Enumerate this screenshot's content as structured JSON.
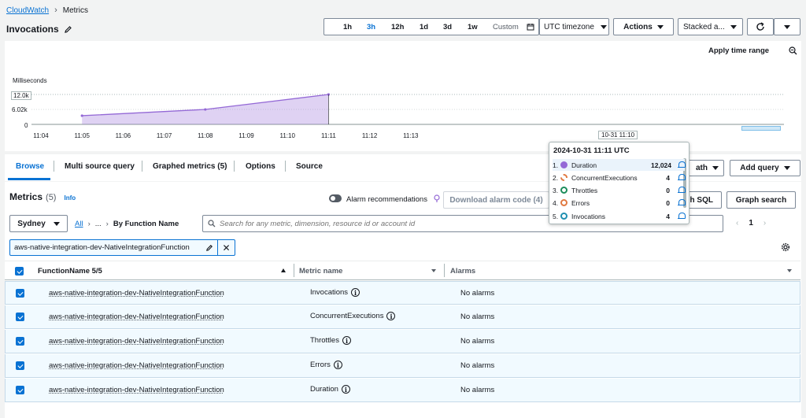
{
  "breadcrumb": {
    "root": "CloudWatch",
    "current": "Metrics"
  },
  "page_title": "Invocations",
  "time_ranges": [
    "1h",
    "3h",
    "12h",
    "1d",
    "3d",
    "1w"
  ],
  "time_range_active": "3h",
  "custom_label": "Custom",
  "timezone_label": "UTC timezone",
  "actions_label": "Actions",
  "stacked_label": "Stacked a...",
  "apply_time_range": "Apply time range",
  "chart_data": {
    "type": "area",
    "ylabel": "Milliseconds",
    "yticks": [
      "12.0k",
      "6.02k",
      "0"
    ],
    "ylim": [
      0,
      12024
    ],
    "x": [
      "11:04",
      "11:05",
      "11:06",
      "11:07",
      "11:08",
      "11:09",
      "11:10",
      "11:11",
      "11:12",
      "11:13"
    ],
    "series": [
      {
        "name": "Duration",
        "color": "#9469d6",
        "points": [
          [
            "11:05",
            3500
          ],
          [
            "11:08",
            6000
          ],
          [
            "11:11",
            12024
          ]
        ]
      }
    ],
    "hover_label": "10-31 11:10"
  },
  "tooltip": {
    "title": "2024-10-31 11:11 UTC",
    "rows": [
      {
        "n": "1.",
        "name": "Duration",
        "value": "12,024",
        "color": "#9469d6",
        "style": "filled"
      },
      {
        "n": "2.",
        "name": "ConcurrentExecutions",
        "value": "4",
        "color": "#e07941",
        "style": "dashed"
      },
      {
        "n": "3.",
        "name": "Throttles",
        "value": "0",
        "color": "#1b8c5a",
        "style": "ring"
      },
      {
        "n": "4.",
        "name": "Errors",
        "value": "0",
        "color": "#e07941",
        "style": "ring"
      },
      {
        "n": "5.",
        "name": "Invocations",
        "value": "4",
        "color": "#1f8fb0",
        "style": "ring"
      }
    ]
  },
  "tabs": [
    "Browse",
    "Multi source query",
    "Graphed metrics (5)",
    "Options",
    "Source"
  ],
  "math_label": "ath",
  "add_query_label": "Add query",
  "metrics_title": "Metrics",
  "metrics_count": "(5)",
  "info_label": "Info",
  "alarm_recommendations": "Alarm recommendations",
  "download_alarm_code": "Download alarm code (4)",
  "sql_label": "h SQL",
  "graph_search": "Graph search",
  "region": "Sydney",
  "crumb_all": "All",
  "crumb_mid": "...",
  "crumb_dim": "By Function Name",
  "search_placeholder": "Search for any metric, dimension, resource id or account id",
  "pagination_page": "1",
  "filter_token": "aws-native-integration-dev-NativeIntegrationFunction",
  "columns": {
    "function": "FunctionName 5/5",
    "metric": "Metric name",
    "alarms": "Alarms"
  },
  "rows": [
    {
      "function": "aws-native-integration-dev-NativeIntegrationFunction",
      "metric": "Invocations",
      "alarms": "No alarms"
    },
    {
      "function": "aws-native-integration-dev-NativeIntegrationFunction",
      "metric": "ConcurrentExecutions",
      "alarms": "No alarms"
    },
    {
      "function": "aws-native-integration-dev-NativeIntegrationFunction",
      "metric": "Throttles",
      "alarms": "No alarms"
    },
    {
      "function": "aws-native-integration-dev-NativeIntegrationFunction",
      "metric": "Errors",
      "alarms": "No alarms"
    },
    {
      "function": "aws-native-integration-dev-NativeIntegrationFunction",
      "metric": "Duration",
      "alarms": "No alarms"
    }
  ]
}
